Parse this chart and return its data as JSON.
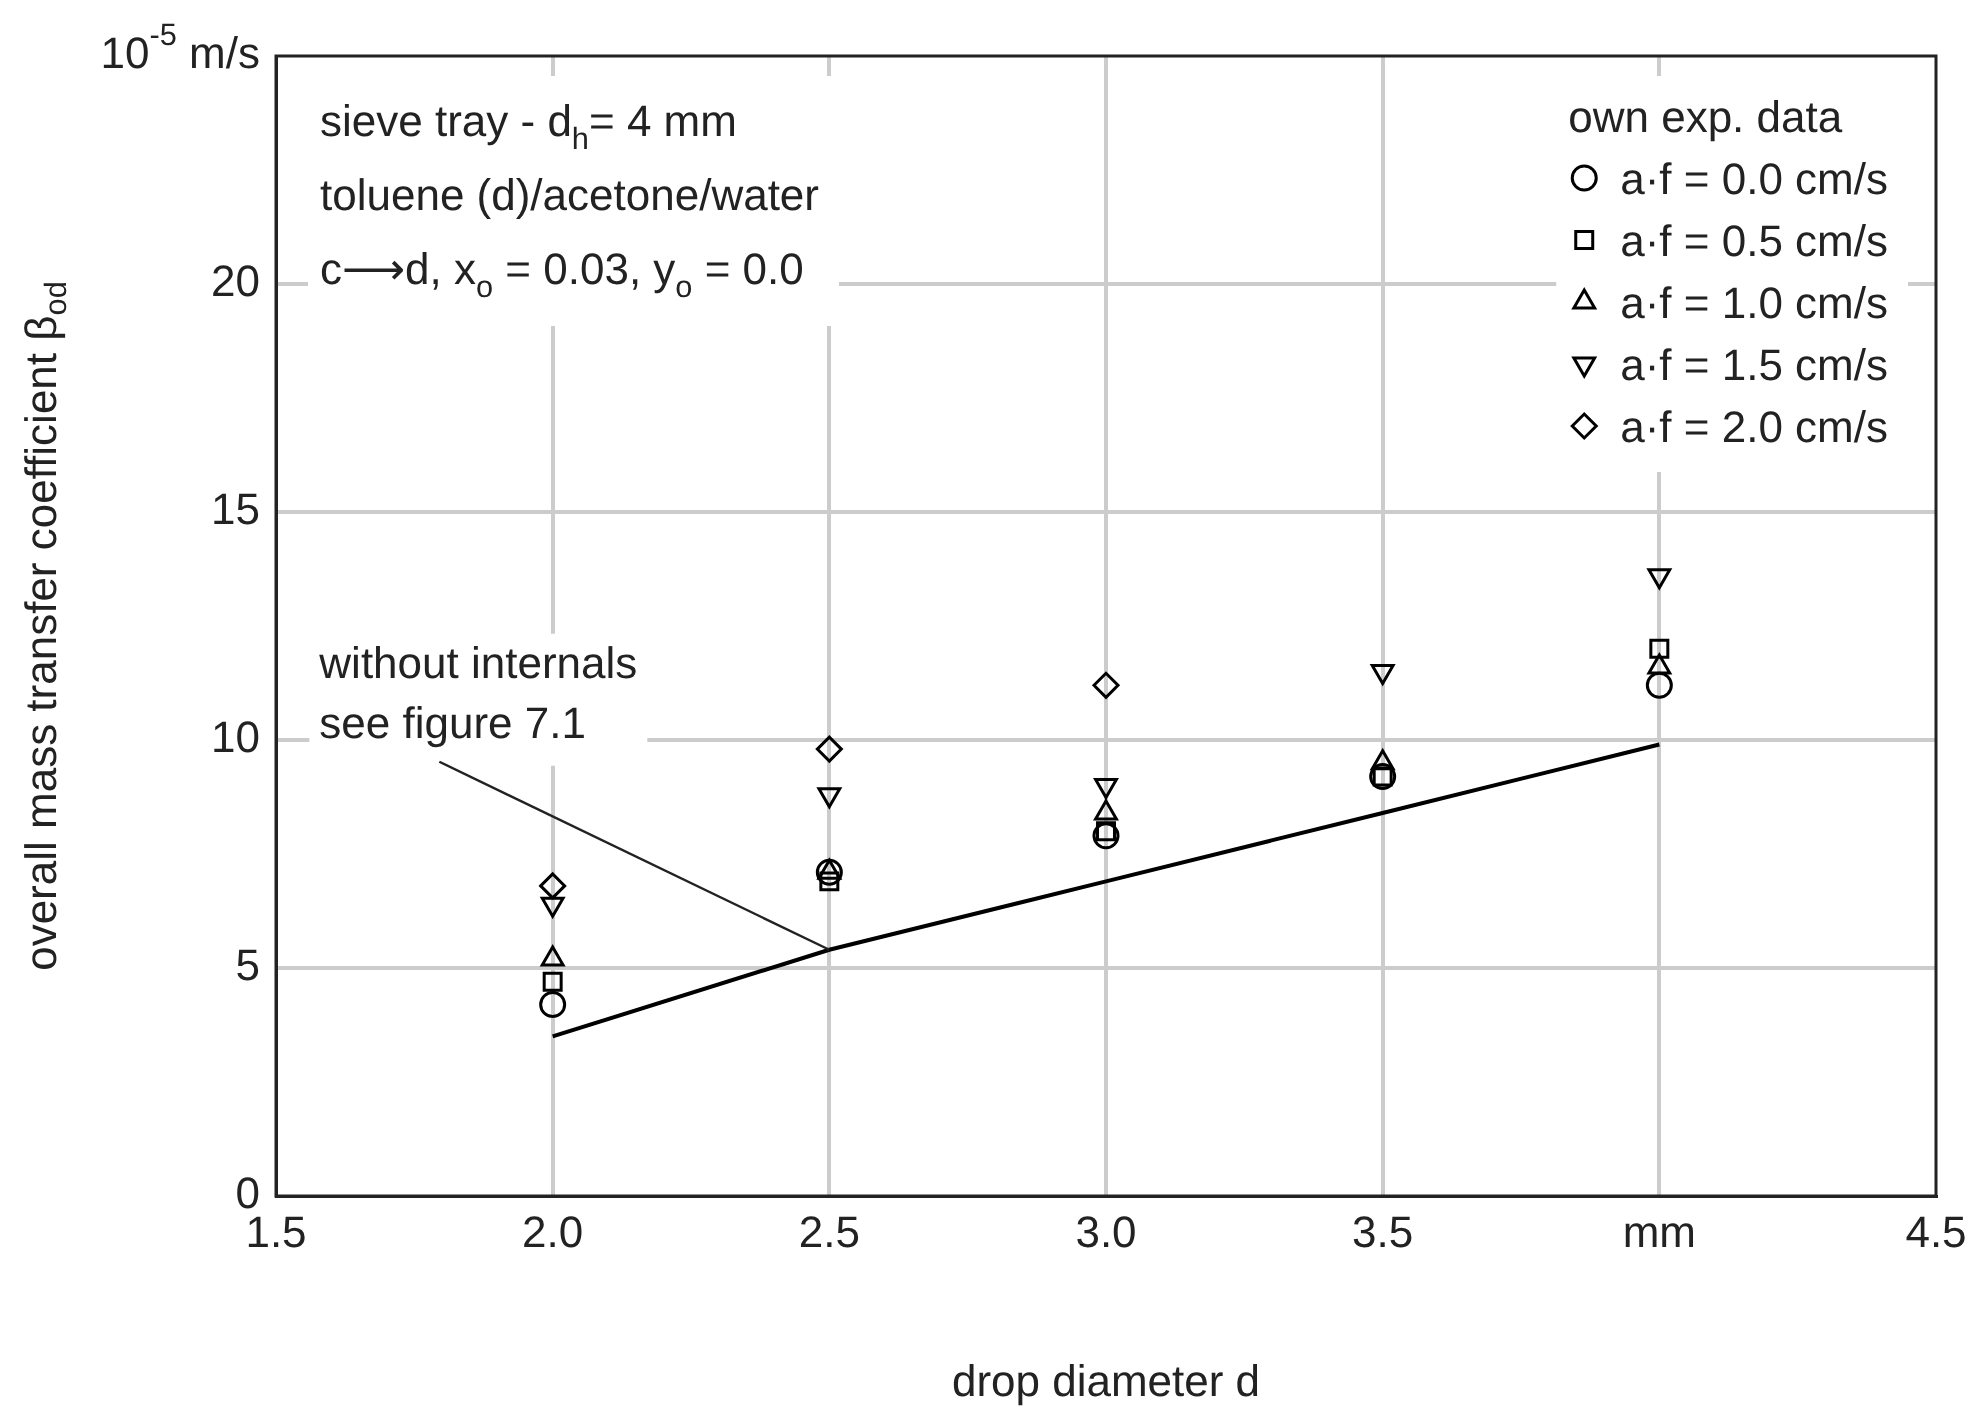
{
  "chart_data": {
    "type": "scatter",
    "xlabel": "drop diameter d",
    "ylabel": "overall mass transfer coefficient β$_{od}$",
    "legend_title": "own exp. data",
    "legend": "top right",
    "grid": true,
    "xlim": [
      1.5,
      4.5
    ],
    "xticks": [
      1.5,
      {
        "value": 2,
        "label": "2.0"
      },
      2.5,
      {
        "value": 3,
        "label": "3.0"
      },
      3.5,
      {
        "value": 4,
        "label": "mm"
      },
      4.5
    ],
    "ylim": [
      0,
      25
    ],
    "yticks": [
      0,
      5,
      10,
      15,
      20,
      {
        "value": 25,
        "label": "10$^{-5}$ m/s"
      }
    ],
    "annotations": [
      "sieve tray - d$_{h}$= 4 mm",
      "toluene (d)/acetone/water",
      "c⟶d, x$_{o}$ = 0.03, y$_{o}$ = 0.0",
      {
        "text": "without internals\nsee figure 7.1",
        "x": 2.5,
        "y": 5.4
      }
    ],
    "series": [
      {
        "name": "a·f = 0.0 cm/s",
        "color": "#000000",
        "marker": "circle",
        "x": [
          2.0,
          2.5,
          3.0,
          3.5,
          4.0
        ],
        "values": [
          4.2,
          7.1,
          7.9,
          9.2,
          11.2
        ]
      },
      {
        "name": "a·f = 0.5 cm/s",
        "color": "#000000",
        "marker": "square",
        "x": [
          2.0,
          2.5,
          3.0,
          3.5,
          4.0
        ],
        "values": [
          4.7,
          6.9,
          8.0,
          9.2,
          12.0
        ]
      },
      {
        "name": "a·f = 1.0 cm/s",
        "color": "#000000",
        "marker": "triangle",
        "x": [
          2.0,
          2.5,
          3.0,
          3.5,
          4.0
        ],
        "values": [
          5.2,
          7.1,
          8.4,
          9.5,
          11.6
        ]
      },
      {
        "name": "a·f = 1.5 cm/s",
        "color": "#000000",
        "marker": "triangle-down",
        "x": [
          2.0,
          2.5,
          3.0,
          3.5,
          4.0
        ],
        "values": [
          6.4,
          8.8,
          9.0,
          11.5,
          13.6
        ]
      },
      {
        "name": "a·f = 2.0 cm/s",
        "color": "#000000",
        "marker": "diamond",
        "x": [
          2.0,
          2.5,
          3.0
        ],
        "values": [
          6.8,
          9.8,
          11.2
        ]
      },
      {
        "type": "line",
        "color": "#000000",
        "marker": "none",
        "line_style": "solid",
        "x": [
          2.0,
          2.5,
          3.0,
          3.5,
          4.0
        ],
        "values": [
          3.5,
          5.4,
          6.9,
          8.4,
          9.9
        ]
      }
    ]
  }
}
